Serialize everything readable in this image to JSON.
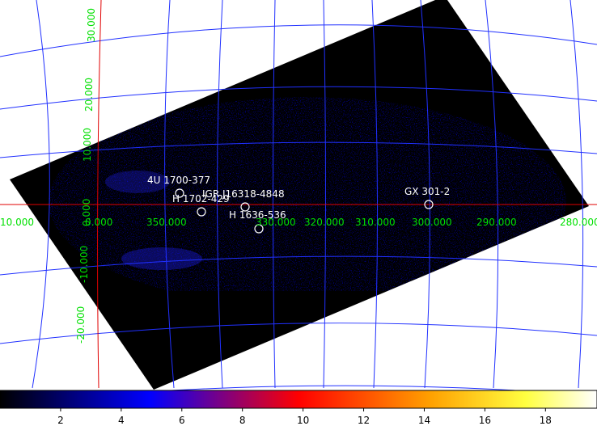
{
  "sky_map": {
    "sources": [
      {
        "label": "4U 1700-377"
      },
      {
        "label": "H 1702-429"
      },
      {
        "label": "IGR J16318-4848"
      },
      {
        "label": "H 1636-536"
      },
      {
        "label": "GX 301-2"
      }
    ],
    "longitude_labels": [
      "10.000",
      "0.000",
      "350.000",
      "330.000",
      "320.000",
      "310.000",
      "300.000",
      "290.000",
      "280.000"
    ],
    "latitude_labels": [
      "30.000",
      "20.000",
      "10.000",
      "0.000",
      "-10.000",
      "-20.000"
    ]
  },
  "colorbar": {
    "range": [
      0,
      19.7
    ],
    "ticks": [
      2,
      4,
      6,
      8,
      10,
      12,
      14,
      16,
      18
    ]
  }
}
